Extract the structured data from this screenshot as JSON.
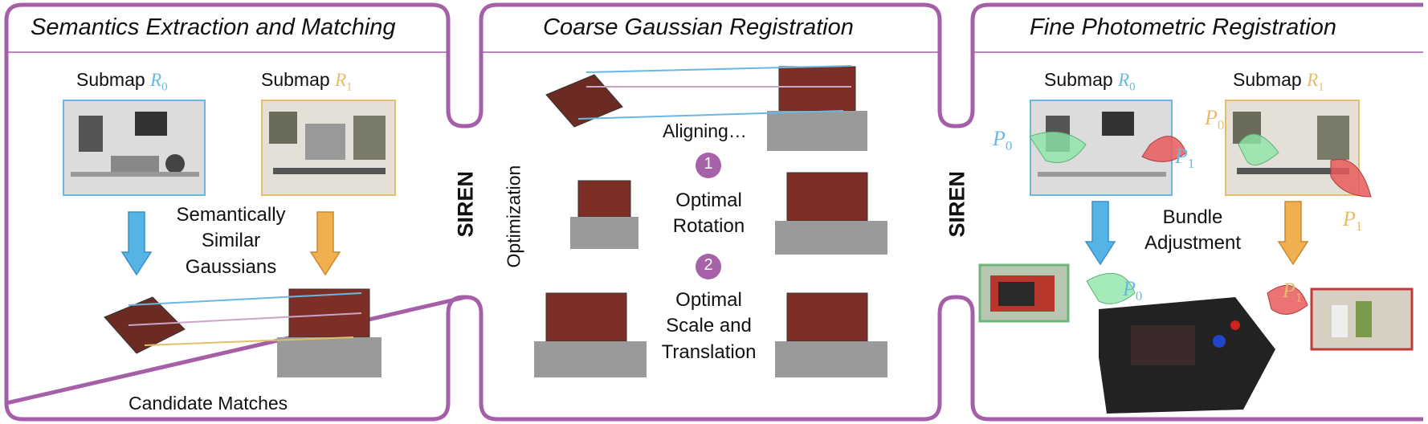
{
  "colors": {
    "frame": "#a45fa8",
    "blue": "#6ab8e2",
    "gold": "#e5bd6a",
    "blue_arrow": "#56b3e6",
    "gold_arrow": "#f0b04f",
    "green_cone": "#8fe6a8",
    "red_cone": "#e85a5a",
    "step_badge": "#a662a8"
  },
  "panels": {
    "semantics": {
      "title": "Semantics Extraction and Matching",
      "submap0_label": "Submap",
      "submap0_symbol": "R",
      "submap0_index": "0",
      "submap1_label": "Submap",
      "submap1_symbol": "R",
      "submap1_index": "1",
      "middle_label": "Semantically Similar Gaussians",
      "bottom_label": "Candidate Matches"
    },
    "coarse": {
      "title": "Coarse Gaussian Registration",
      "aligning_label": "Aligning…",
      "side_label": "Optimization",
      "steps": [
        {
          "number": "1",
          "label": "Optimal Rotation"
        },
        {
          "number": "2",
          "label": "Optimal Scale and Translation"
        }
      ]
    },
    "fine": {
      "title": "Fine Photometric Registration",
      "submap0_label": "Submap",
      "submap0_symbol": "R",
      "submap0_index": "0",
      "submap1_label": "Submap",
      "submap1_symbol": "R",
      "submap1_index": "1",
      "pose_symbol": "P",
      "pose0_index": "0",
      "pose1_index": "1",
      "middle_label": "Bundle Adjustment"
    }
  },
  "connectors": {
    "left": "SIREN",
    "right": "SIREN"
  }
}
